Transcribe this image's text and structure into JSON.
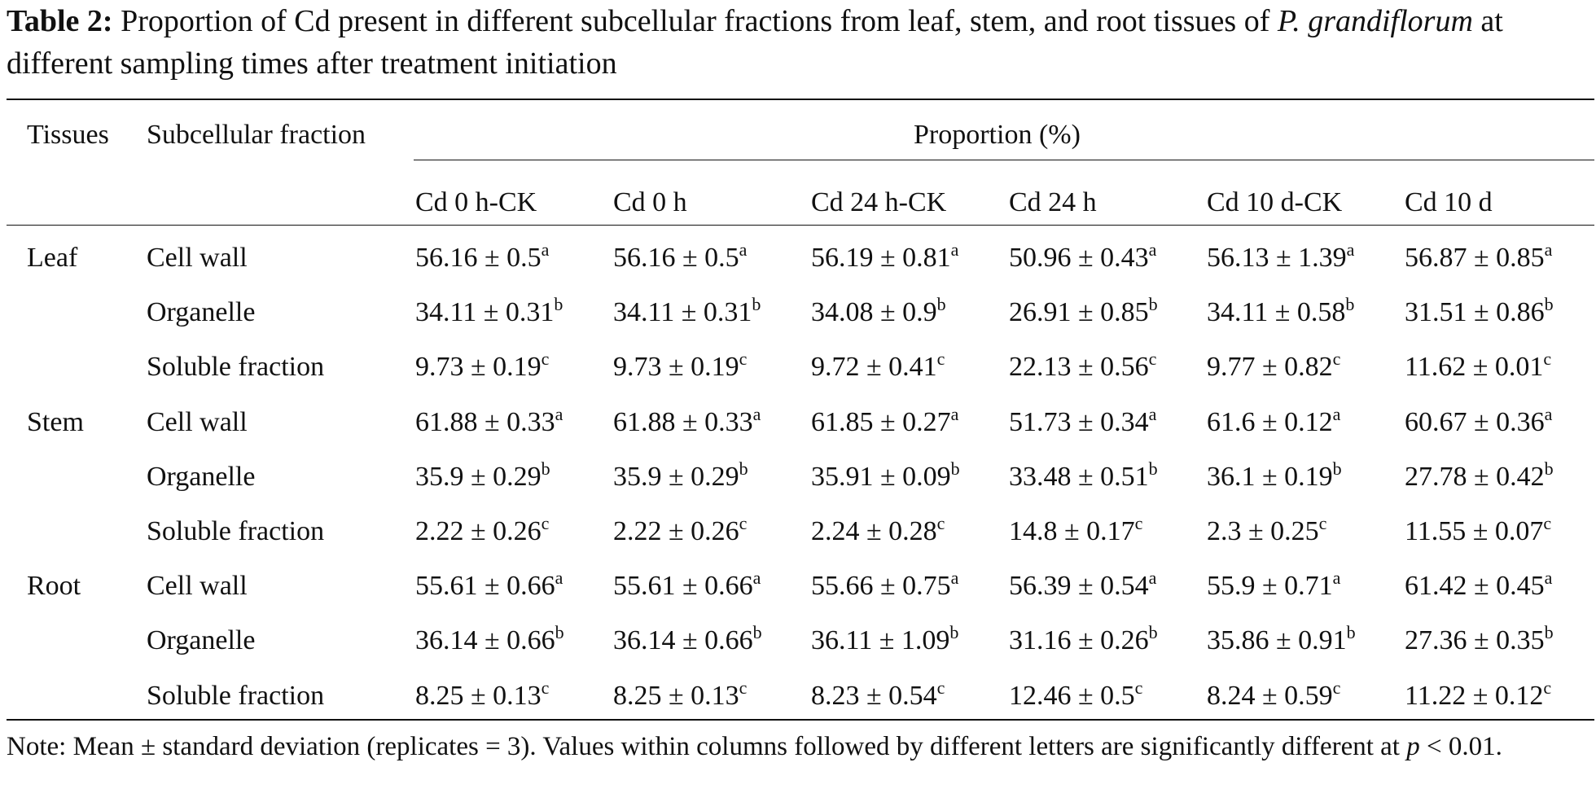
{
  "caption": {
    "label": "Table 2:",
    "text_before": "Proportion of Cd present in different subcellular fractions from leaf, stem, and root tissues of",
    "species": "P. grandiflorum",
    "text_after": "at different sampling times after treatment initiation"
  },
  "headers": {
    "tissues": "Tissues",
    "fraction": "Subcellular fraction",
    "proportion": "Proportion (%)",
    "columns": [
      "Cd 0 h-CK",
      "Cd 0 h",
      "Cd 24 h-CK",
      "Cd 24 h",
      "Cd 10 d-CK",
      "Cd 10 d"
    ]
  },
  "rows": [
    {
      "tissue": "Leaf",
      "fraction": "Cell wall",
      "cells": [
        {
          "v": "56.16 ± 0.5",
          "s": "a"
        },
        {
          "v": "56.16 ± 0.5",
          "s": "a"
        },
        {
          "v": "56.19 ± 0.81",
          "s": "a"
        },
        {
          "v": "50.96 ± 0.43",
          "s": "a"
        },
        {
          "v": "56.13 ± 1.39",
          "s": "a"
        },
        {
          "v": "56.87 ± 0.85",
          "s": "a"
        }
      ]
    },
    {
      "tissue": "",
      "fraction": "Organelle",
      "cells": [
        {
          "v": "34.11 ± 0.31",
          "s": "b"
        },
        {
          "v": "34.11 ± 0.31",
          "s": "b"
        },
        {
          "v": "34.08 ± 0.9",
          "s": "b"
        },
        {
          "v": "26.91 ± 0.85",
          "s": "b"
        },
        {
          "v": "34.11 ± 0.58",
          "s": "b"
        },
        {
          "v": "31.51 ± 0.86",
          "s": "b"
        }
      ]
    },
    {
      "tissue": "",
      "fraction": "Soluble fraction",
      "cells": [
        {
          "v": "9.73 ± 0.19",
          "s": "c"
        },
        {
          "v": "9.73 ± 0.19",
          "s": "c"
        },
        {
          "v": "9.72 ± 0.41",
          "s": "c"
        },
        {
          "v": "22.13 ± 0.56",
          "s": "c"
        },
        {
          "v": "9.77 ± 0.82",
          "s": "c"
        },
        {
          "v": "11.62 ± 0.01",
          "s": "c"
        }
      ]
    },
    {
      "tissue": "Stem",
      "fraction": "Cell wall",
      "cells": [
        {
          "v": "61.88 ± 0.33",
          "s": "a"
        },
        {
          "v": "61.88 ± 0.33",
          "s": "a"
        },
        {
          "v": "61.85 ± 0.27",
          "s": "a"
        },
        {
          "v": "51.73 ± 0.34",
          "s": "a"
        },
        {
          "v": "61.6 ± 0.12",
          "s": "a"
        },
        {
          "v": "60.67 ± 0.36",
          "s": "a"
        }
      ]
    },
    {
      "tissue": "",
      "fraction": "Organelle",
      "cells": [
        {
          "v": "35.9 ± 0.29",
          "s": "b"
        },
        {
          "v": "35.9 ± 0.29",
          "s": "b"
        },
        {
          "v": "35.91 ± 0.09",
          "s": "b"
        },
        {
          "v": "33.48 ± 0.51",
          "s": "b"
        },
        {
          "v": "36.1 ± 0.19",
          "s": "b"
        },
        {
          "v": "27.78 ± 0.42",
          "s": "b"
        }
      ]
    },
    {
      "tissue": "",
      "fraction": "Soluble fraction",
      "cells": [
        {
          "v": "2.22 ± 0.26",
          "s": "c"
        },
        {
          "v": "2.22 ± 0.26",
          "s": "c"
        },
        {
          "v": "2.24 ± 0.28",
          "s": "c"
        },
        {
          "v": "14.8 ± 0.17",
          "s": "c"
        },
        {
          "v": "2.3 ± 0.25",
          "s": "c"
        },
        {
          "v": "11.55 ± 0.07",
          "s": "c"
        }
      ]
    },
    {
      "tissue": "Root",
      "fraction": "Cell wall",
      "cells": [
        {
          "v": "55.61 ± 0.66",
          "s": "a"
        },
        {
          "v": "55.61 ± 0.66",
          "s": "a"
        },
        {
          "v": "55.66 ± 0.75",
          "s": "a"
        },
        {
          "v": "56.39 ± 0.54",
          "s": "a"
        },
        {
          "v": "55.9 ± 0.71",
          "s": "a"
        },
        {
          "v": "61.42 ± 0.45",
          "s": "a"
        }
      ]
    },
    {
      "tissue": "",
      "fraction": "Organelle",
      "cells": [
        {
          "v": "36.14 ± 0.66",
          "s": "b"
        },
        {
          "v": "36.14 ± 0.66",
          "s": "b"
        },
        {
          "v": "36.11 ± 1.09",
          "s": "b"
        },
        {
          "v": "31.16 ± 0.26",
          "s": "b"
        },
        {
          "v": "35.86 ± 0.91",
          "s": "b"
        },
        {
          "v": "27.36 ± 0.35",
          "s": "b"
        }
      ]
    },
    {
      "tissue": "",
      "fraction": "Soluble fraction",
      "cells": [
        {
          "v": "8.25 ± 0.13",
          "s": "c"
        },
        {
          "v": "8.25 ± 0.13",
          "s": "c"
        },
        {
          "v": "8.23 ± 0.54",
          "s": "c"
        },
        {
          "v": "12.46 ± 0.5",
          "s": "c"
        },
        {
          "v": "8.24 ± 0.59",
          "s": "c"
        },
        {
          "v": "11.22 ± 0.12",
          "s": "c"
        }
      ]
    }
  ],
  "note": {
    "text": "Note: Mean ± standard deviation (replicates = 3). Values within columns followed by different letters are significantly different at",
    "p_symbol": "p",
    "p_value": "< 0.01."
  }
}
